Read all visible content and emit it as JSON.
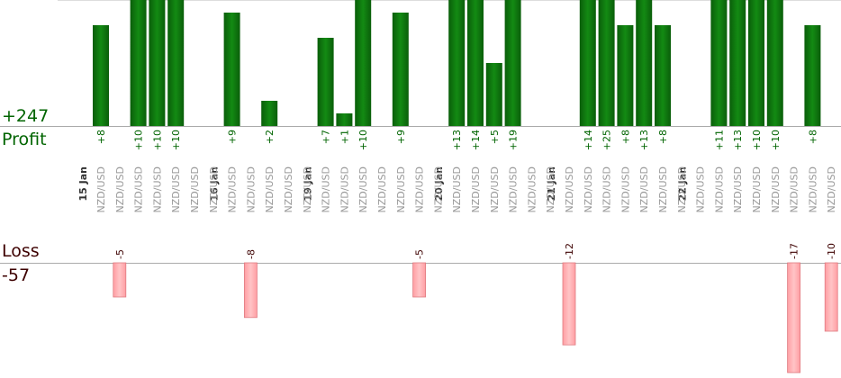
{
  "chart_data": {
    "type": "bar",
    "profit": {
      "label": "Profit",
      "total": "+247",
      "values": [
        8,
        null,
        10,
        10,
        10,
        null,
        null,
        9,
        null,
        2,
        null,
        null,
        7,
        1,
        10,
        null,
        9,
        null,
        null,
        13,
        14,
        5,
        19,
        null,
        null,
        null,
        14,
        25,
        8,
        13,
        8,
        null,
        null,
        11,
        13,
        10,
        10,
        null,
        8,
        null
      ],
      "labels": [
        "+8",
        "",
        "+10",
        "+10",
        "+10",
        "",
        "",
        "+9",
        "",
        "+2",
        "",
        "",
        "+7",
        "+1",
        "+10",
        "",
        "+9",
        "",
        "",
        "+13",
        "+14",
        "+5",
        "+19",
        "",
        "",
        "",
        "+14",
        "+25",
        "+8",
        "+13",
        "+8",
        "",
        "",
        "+11",
        "+13",
        "+10",
        "+10",
        "",
        "+8",
        ""
      ],
      "color": "#006400"
    },
    "loss": {
      "label": "Loss",
      "total": "-57",
      "values": [
        null,
        -5,
        null,
        null,
        null,
        null,
        null,
        null,
        -8,
        null,
        null,
        null,
        null,
        null,
        null,
        null,
        null,
        -5,
        null,
        null,
        null,
        null,
        null,
        null,
        null,
        -12,
        null,
        null,
        null,
        null,
        null,
        null,
        null,
        null,
        null,
        null,
        null,
        -17,
        null,
        -10
      ],
      "labels": [
        "",
        "-5",
        "",
        "",
        "",
        "",
        "",
        "",
        "-8",
        "",
        "",
        "",
        "",
        "",
        "",
        "",
        "",
        "-5",
        "",
        "",
        "",
        "",
        "",
        "",
        "",
        "-12",
        "",
        "",
        "",
        "",
        "",
        "",
        "",
        "",
        "",
        "",
        "",
        "-17",
        "",
        "-10"
      ],
      "color": "#ffb0b3"
    },
    "dates": [
      "15 Jan",
      "16 Jan",
      "19 Jan",
      "20 Jan",
      "21 Jan",
      "22 Jan"
    ],
    "date_slots": [
      0,
      7,
      12,
      19,
      25,
      32
    ],
    "instrument": "NZD/USD",
    "slot_count": 40,
    "grid": false
  }
}
